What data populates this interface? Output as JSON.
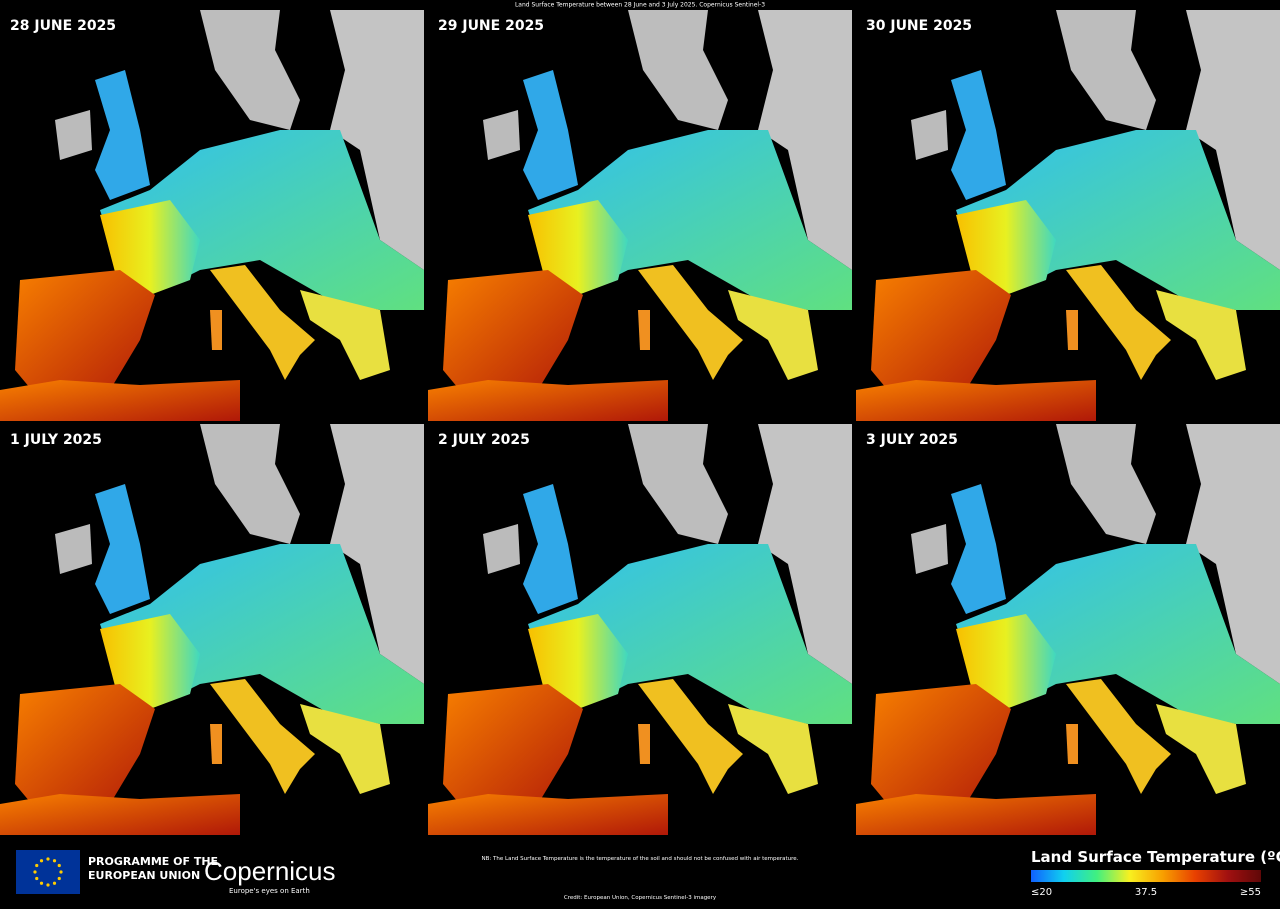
{
  "title": "Land Surface Temperature between 28 June and 3 July 2025. Copernicus Sentinel-3",
  "panels": [
    {
      "label": "28 JUNE 2025"
    },
    {
      "label": "29 JUNE 2025"
    },
    {
      "label": "30 JUNE 2025"
    },
    {
      "label": "1 JULY 2025"
    },
    {
      "label": "2 JULY 2025"
    },
    {
      "label": "3 JULY 2025"
    }
  ],
  "footer": {
    "programme": [
      "PROGRAMME OF THE",
      "EUROPEAN UNION"
    ],
    "logo": "Copernicus",
    "tagline": "Europe's eyes on Earth",
    "note": "NB: The Land Surface Temperature is the temperature of the soil and should not be confused with air temperature.",
    "credit": "Credit: European Union, Copernicus Sentinel-3 imagery"
  },
  "legend": {
    "title": "Land Surface Temperature (ºC)",
    "range": [
      20,
      55
    ],
    "ticks": [
      {
        "value": 20,
        "label": "≤20"
      },
      37.5,
      {
        "value": 55,
        "label": "≥55"
      }
    ],
    "colors": [
      "#1060ff",
      "#10d0f0",
      "#40f080",
      "#f8f020",
      "#f8a000",
      "#e84000",
      "#a01010",
      "#600808"
    ]
  }
}
